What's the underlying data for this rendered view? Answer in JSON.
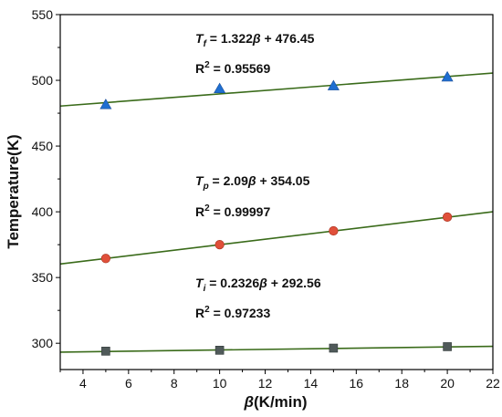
{
  "chart_data": {
    "type": "scatter",
    "title": "",
    "xlabel": {
      "symbol": "β",
      "unit": "(K/min)"
    },
    "ylabel": "Temperature(K)",
    "xlim": [
      3,
      22
    ],
    "ylim": [
      280,
      550
    ],
    "xticks": [
      4,
      6,
      8,
      10,
      12,
      14,
      16,
      18,
      20,
      22
    ],
    "yticks": [
      300,
      350,
      400,
      450,
      500,
      550
    ],
    "grid": false,
    "series": [
      {
        "x": [
          5,
          10,
          15,
          20
        ],
        "values": [
          481.5,
          493.6,
          495.8,
          502.5
        ],
        "marker": "triangle",
        "color": "#1f6fd1",
        "fit": {
          "slope": 1.322,
          "intercept": 476.45
        },
        "equation": {
          "symbol": "T",
          "sub": "f",
          "rhs": " = 1.322",
          "var": "β",
          "tail": " + 476.45"
        },
        "r2": {
          "base": "R",
          "sup": "2",
          "rest": " = 0.95569"
        }
      },
      {
        "x": [
          5,
          10,
          15,
          20
        ],
        "values": [
          364.5,
          375.0,
          385.5,
          396.0
        ],
        "marker": "circle",
        "color": "#e0503a",
        "fit": {
          "slope": 2.09,
          "intercept": 354.05
        },
        "equation": {
          "symbol": "T",
          "sub": "p",
          "rhs": " = 2.09",
          "var": "β",
          "tail": " + 354.05"
        },
        "r2": {
          "base": "R",
          "sup": "2",
          "rest": " = 0.99997"
        }
      },
      {
        "x": [
          5,
          10,
          15,
          20
        ],
        "values": [
          294.0,
          294.7,
          296.3,
          297.4
        ],
        "marker": "square",
        "color": "#505a5a",
        "fit": {
          "slope": 0.2326,
          "intercept": 292.56
        },
        "equation": {
          "symbol": "T",
          "sub": "i",
          "rhs": " = 0.2326",
          "var": "β",
          "tail": " + 292.56"
        },
        "r2": {
          "base": "R",
          "sup": "2",
          "rest": " = 0.97233"
        }
      }
    ],
    "fit_line_color": "#3a6b1a"
  }
}
